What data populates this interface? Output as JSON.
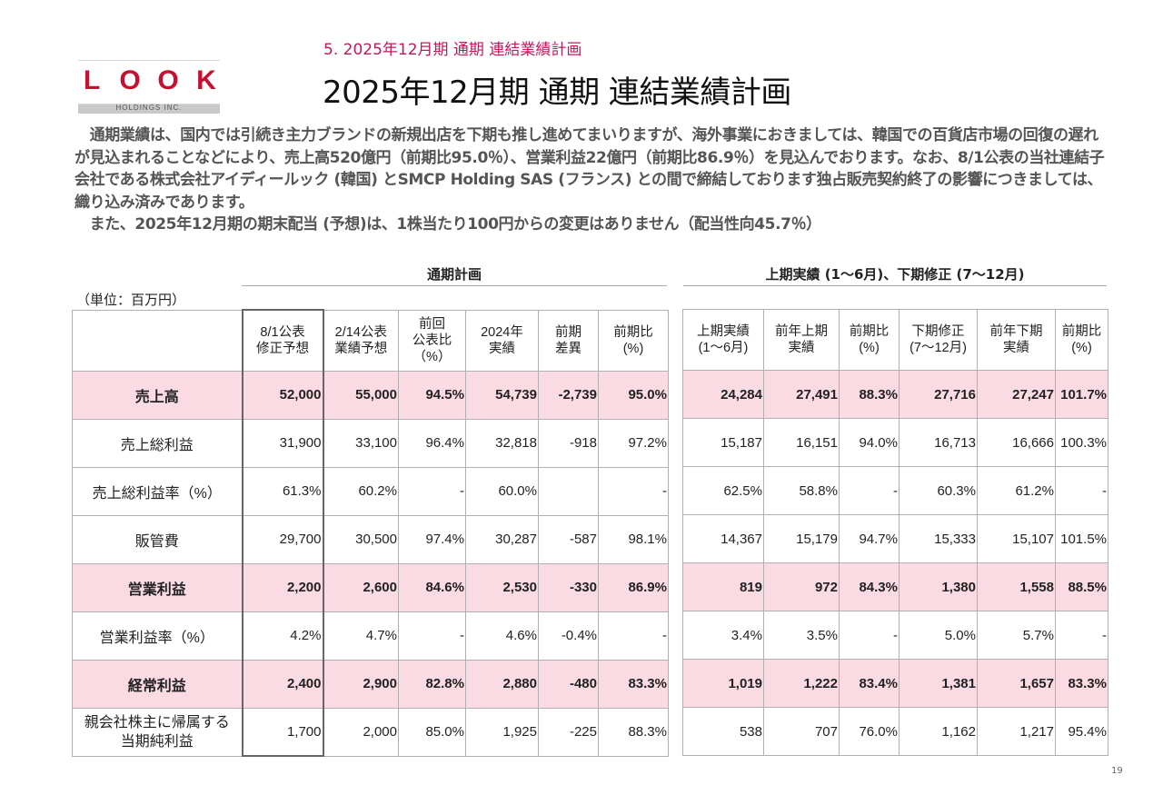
{
  "logo": {
    "letters": [
      "L",
      "O",
      "O",
      "K"
    ],
    "sub": "HOLDINGS INC."
  },
  "subtitle": "5. 2025年12月期 通期 連結業績計画",
  "title": "2025年12月期 通期 連結業績計画",
  "intro": [
    "　通期業績は、国内では引続き主力ブランドの新規出店を下期も推し進めてまいりますが、海外事業におきましては、韓国での百貨店市場の回復の遅れが見込まれることなどにより、売上高520億円（前期比95.0％）、営業利益22億円（前期比86.9％）を見込んでおります。なお、8/1公表の当社連結子会社である株式会社アイディールック (韓国) とSMCP Holding SAS (フランス) との間で締結しております独占販売契約終了の影響につきましては、織り込み済みであります。",
    "　また、2025年12月期の期末配当 (予想)は、1株当たり100円からの変更はありません（配当性向45.7％）"
  ],
  "unit_label": "（単位：百万円）",
  "section_left": "通期計画",
  "section_right": "上期実績 (1〜6月)、下期修正 (7〜12月)",
  "left_headers": [
    "8/1公表\n修正予想",
    "2/14公表\n業績予想",
    "前回\n公表比\n（%）",
    "2024年\n実績",
    "前期\n差異",
    "前期比\n(%)"
  ],
  "right_headers": [
    "上期実績\n(1〜6月)",
    "前年上期\n実績",
    "前期比\n(%)",
    "下期修正\n(7〜12月)",
    "前年下期\n実績",
    "前期比\n(%)"
  ],
  "rows": [
    {
      "label": "売上高",
      "highlight": true,
      "left": [
        "52,000",
        "55,000",
        "94.5%",
        "54,739",
        "-2,739",
        "95.0%"
      ],
      "right": [
        "24,284",
        "27,491",
        "88.3%",
        "27,716",
        "27,247",
        "101.7%"
      ]
    },
    {
      "label": "売上総利益",
      "highlight": false,
      "left": [
        "31,900",
        "33,100",
        "96.4%",
        "32,818",
        "-918",
        "97.2%"
      ],
      "right": [
        "15,187",
        "16,151",
        "94.0%",
        "16,713",
        "16,666",
        "100.3%"
      ]
    },
    {
      "label": "売上総利益率（%）",
      "highlight": false,
      "left": [
        "61.3%",
        "60.2%",
        "-",
        "60.0%",
        "",
        "-"
      ],
      "right": [
        "62.5%",
        "58.8%",
        "-",
        "60.3%",
        "61.2%",
        "-"
      ]
    },
    {
      "label": "販管費",
      "highlight": false,
      "left": [
        "29,700",
        "30,500",
        "97.4%",
        "30,287",
        "-587",
        "98.1%"
      ],
      "right": [
        "14,367",
        "15,179",
        "94.7%",
        "15,333",
        "15,107",
        "101.5%"
      ]
    },
    {
      "label": "営業利益",
      "highlight": true,
      "left": [
        "2,200",
        "2,600",
        "84.6%",
        "2,530",
        "-330",
        "86.9%"
      ],
      "right": [
        "819",
        "972",
        "84.3%",
        "1,380",
        "1,558",
        "88.5%"
      ]
    },
    {
      "label": "営業利益率（%）",
      "highlight": false,
      "left": [
        "4.2%",
        "4.7%",
        "-",
        "4.6%",
        "-0.4%",
        "-"
      ],
      "right": [
        "3.4%",
        "3.5%",
        "-",
        "5.0%",
        "5.7%",
        "-"
      ]
    },
    {
      "label": "経常利益",
      "highlight": true,
      "left": [
        "2,400",
        "2,900",
        "82.8%",
        "2,880",
        "-480",
        "83.3%"
      ],
      "right": [
        "1,019",
        "1,222",
        "83.4%",
        "1,381",
        "1,657",
        "83.3%"
      ]
    },
    {
      "label": "親会社株主に帰属する\n当期純利益",
      "highlight": false,
      "left": [
        "1,700",
        "2,000",
        "85.0%",
        "1,925",
        "-225",
        "88.3%"
      ],
      "right": [
        "538",
        "707",
        "76.0%",
        "1,162",
        "1,217",
        "95.4%"
      ]
    }
  ],
  "page_number": "19"
}
